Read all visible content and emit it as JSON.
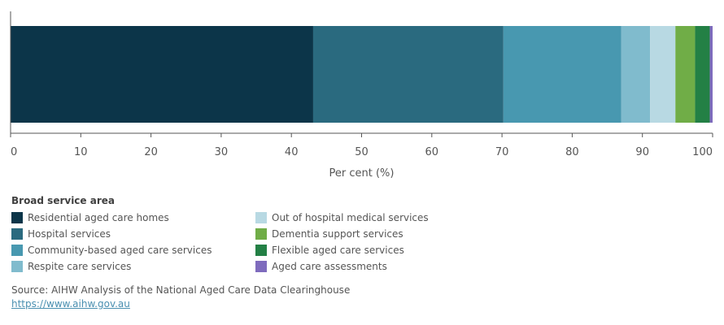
{
  "chart_data": {
    "type": "bar",
    "orientation": "horizontal",
    "stacked": true,
    "categories": [
      ""
    ],
    "series": [
      {
        "name": "Residential aged care homes",
        "values": [
          43.1
        ],
        "color": "#0c3549"
      },
      {
        "name": "Hospital services",
        "values": [
          27.1
        ],
        "color": "#2a6a7f"
      },
      {
        "name": "Community-based aged care services",
        "values": [
          16.8
        ],
        "color": "#4898b0"
      },
      {
        "name": "Respite care services",
        "values": [
          4.1
        ],
        "color": "#80bbcd"
      },
      {
        "name": "Out of hospital medical services",
        "values": [
          3.6
        ],
        "color": "#b8d9e3"
      },
      {
        "name": "Dementia support services",
        "values": [
          2.8
        ],
        "color": "#70ad47"
      },
      {
        "name": "Flexible aged care services",
        "values": [
          2.1
        ],
        "color": "#238045"
      },
      {
        "name": "Aged care assessments",
        "values": [
          0.4
        ],
        "color": "#7e6bbd"
      }
    ],
    "xlabel": "Per cent (%)",
    "xlim": [
      0,
      100
    ],
    "xticks": [
      "0",
      "10",
      "20",
      "30",
      "40",
      "50",
      "60",
      "70",
      "80",
      "90",
      "100"
    ],
    "grid": false,
    "legend_title": "Broad service area",
    "legend_position": "bottom"
  },
  "source": {
    "text": "Source: AIHW Analysis of the National Aged Care Data Clearinghouse",
    "link": "https://www.aihw.gov.au"
  }
}
